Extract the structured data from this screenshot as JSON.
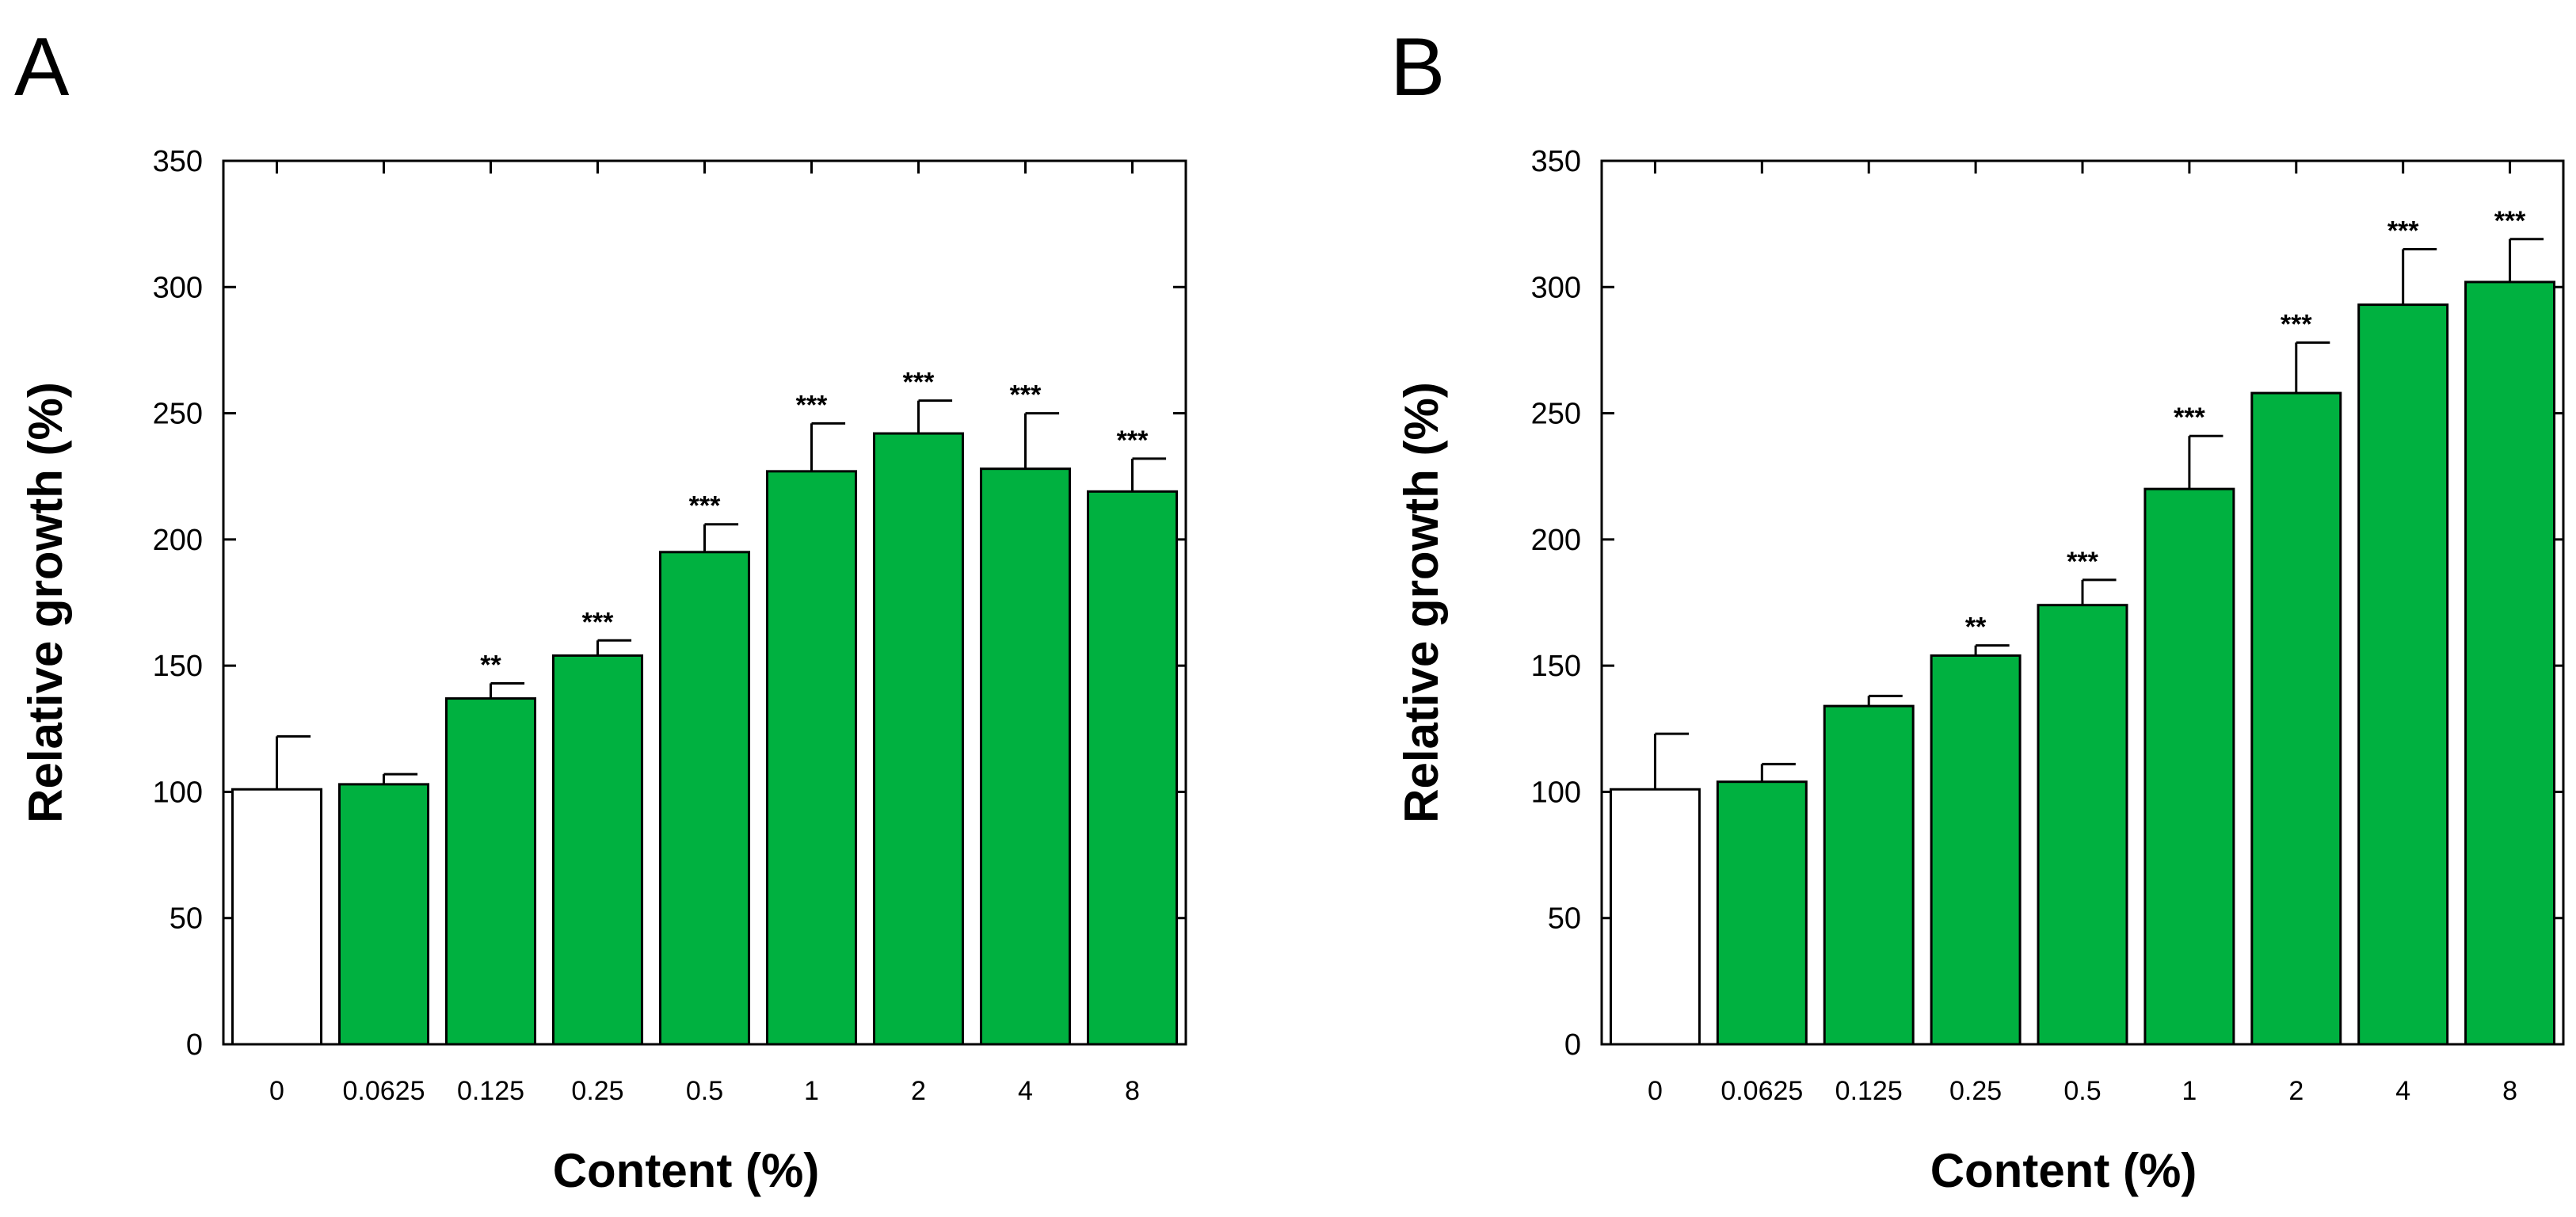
{
  "colors": {
    "bar_fill": "#00b140",
    "control_fill": "#ffffff",
    "stroke": "#000000"
  },
  "chart_data": [
    {
      "panel": "A",
      "type": "bar",
      "categories": [
        "0",
        "0.0625",
        "0.125",
        "0.25",
        "0.5",
        "1",
        "2",
        "4",
        "8"
      ],
      "values": [
        101,
        103,
        137,
        154,
        195,
        227,
        242,
        228,
        219
      ],
      "errors": [
        21,
        4,
        6,
        6,
        11,
        19,
        13,
        22,
        13
      ],
      "significance": [
        "",
        "",
        "**",
        "***",
        "***",
        "***",
        "***",
        "***",
        "***"
      ],
      "control_index": 0,
      "xlabel": "Content (%)",
      "ylabel": "Relative growth (%)",
      "ylim": [
        0,
        350
      ],
      "yticks": [
        0,
        50,
        100,
        150,
        200,
        250,
        300,
        350
      ],
      "grid": false
    },
    {
      "panel": "B",
      "type": "bar",
      "categories": [
        "0",
        "0.0625",
        "0.125",
        "0.25",
        "0.5",
        "1",
        "2",
        "4",
        "8"
      ],
      "values": [
        101,
        104,
        134,
        154,
        174,
        220,
        258,
        293,
        302
      ],
      "errors": [
        22,
        7,
        4,
        4,
        10,
        21,
        20,
        22,
        17
      ],
      "significance": [
        "",
        "",
        "",
        "**",
        "***",
        "***",
        "***",
        "***",
        "***"
      ],
      "control_index": 0,
      "xlabel": "Content (%)",
      "ylabel": "Relative growth (%)",
      "ylim": [
        0,
        350
      ],
      "yticks": [
        0,
        50,
        100,
        150,
        200,
        250,
        300,
        350
      ],
      "grid": false
    }
  ]
}
